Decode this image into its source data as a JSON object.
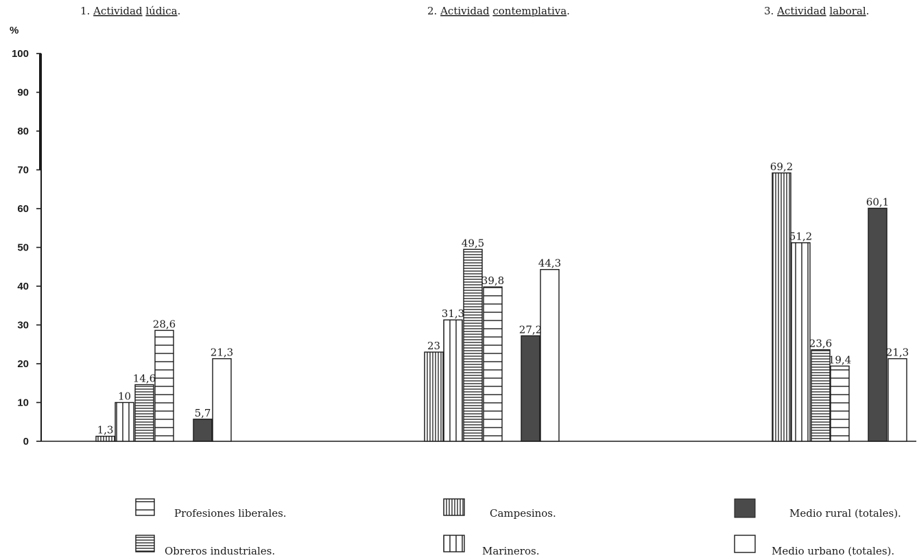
{
  "chart_data": {
    "type": "bar",
    "y_unit": "%",
    "ylim": [
      0,
      100
    ],
    "y_ticks": [
      "0",
      "10",
      "20",
      "30",
      "40",
      "50",
      "60",
      "70",
      "80",
      "90",
      "100"
    ],
    "groups": [
      {
        "number": "1.",
        "title_words": [
          "Actividad",
          "lúdica"
        ],
        "suffix": "."
      },
      {
        "number": "2.",
        "title_words": [
          "Actividad",
          "contemplativa"
        ],
        "suffix": "."
      },
      {
        "number": "3.",
        "title_words": [
          "Actividad",
          "laboral"
        ],
        "suffix": "."
      }
    ],
    "series": [
      {
        "key": "profesiones",
        "name": "Profesiones liberales.",
        "pattern": "horizontal-wide",
        "values": [
          28.6,
          39.8,
          19.4
        ],
        "labels": [
          "28,6",
          "39,8",
          "19,4"
        ]
      },
      {
        "key": "obreros",
        "name": "Obreros industriales.",
        "pattern": "horizontal-dense",
        "values": [
          14.6,
          49.5,
          23.6
        ],
        "labels": [
          "14,6",
          "49,5",
          "23,6"
        ]
      },
      {
        "key": "campesinos",
        "name": "Campesinos.",
        "pattern": "vertical-dense",
        "values": [
          1.3,
          23,
          69.2
        ],
        "labels": [
          "1,3",
          "23",
          "69,2"
        ]
      },
      {
        "key": "marineros",
        "name": "Marineros.",
        "pattern": "vertical-wide",
        "values": [
          10,
          31.3,
          51.2
        ],
        "labels": [
          "10",
          "31,3",
          "51,2"
        ]
      },
      {
        "key": "rural",
        "name": "Medio rural (totales).",
        "pattern": "solid-dark",
        "values": [
          5.7,
          27.2,
          60.1
        ],
        "labels": [
          "5,7",
          "27,2",
          "60,1"
        ]
      },
      {
        "key": "urbano",
        "name": "Medio urbano (totales).",
        "pattern": "white",
        "values": [
          21.3,
          44.3,
          21.3
        ],
        "labels": [
          "21,3",
          "44,3",
          "21,3"
        ]
      }
    ],
    "bar_order_in_group": [
      "campesinos",
      "marineros",
      "obreros",
      "profesiones",
      "rural",
      "urbano"
    ],
    "grid": false,
    "legend_position": "bottom",
    "colors": {
      "ink": "#1a1a1a",
      "rural_fill": "#4a4a4a",
      "background": "#ffffff"
    }
  }
}
